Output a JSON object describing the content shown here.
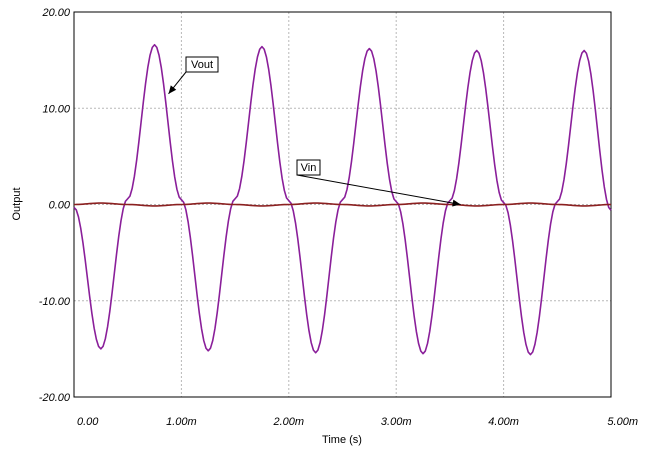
{
  "chart_data": {
    "type": "line",
    "title": "",
    "xlabel": "Time (s)",
    "ylabel": "Output",
    "xlim": [
      0,
      0.005
    ],
    "ylim": [
      -20,
      20
    ],
    "x_tick_labels": [
      "0.00",
      "1.00m",
      "2.00m",
      "3.00m",
      "4.00m",
      "5.00m"
    ],
    "y_tick_labels": [
      "20.00",
      "10.00",
      "0.00",
      "-10.00",
      "-20.00"
    ],
    "grid": true,
    "series": [
      {
        "name": "Vout",
        "color": "#8a1f9a",
        "x": [
          0,
          0.00025,
          0.0005,
          0.00075,
          0.001,
          0.00125,
          0.0015,
          0.00175,
          0.002,
          0.00225,
          0.0025,
          0.00275,
          0.003,
          0.00325,
          0.0035,
          0.00375,
          0.004,
          0.00425,
          0.0045,
          0.00475,
          0.005
        ],
        "values": [
          -0.3,
          -15.0,
          0.6,
          16.6,
          0.5,
          -15.2,
          0.6,
          16.4,
          0.4,
          -15.4,
          0.5,
          16.2,
          0.3,
          -15.5,
          0.4,
          16.0,
          0.2,
          -15.6,
          0.3,
          16.0,
          -0.6
        ]
      },
      {
        "name": "Vin",
        "color": "#8b2020",
        "x": [
          0,
          0.00025,
          0.0005,
          0.00075,
          0.001,
          0.00125,
          0.0015,
          0.00175,
          0.002,
          0.00225,
          0.0025,
          0.00275,
          0.003,
          0.00325,
          0.0035,
          0.00375,
          0.004,
          0.00425,
          0.0045,
          0.00475,
          0.005
        ],
        "values": [
          0,
          0.15,
          0,
          -0.15,
          0,
          0.15,
          0,
          -0.15,
          0,
          0.15,
          0,
          -0.15,
          0,
          0.15,
          0,
          -0.15,
          0,
          0.15,
          0,
          -0.15,
          0
        ]
      }
    ],
    "annotations": [
      {
        "text": "Vout",
        "target_series": "Vout",
        "target_x": 0.00088,
        "target_y": 11.5
      },
      {
        "text": "Vin",
        "target_series": "Vin",
        "target_x": 0.0036,
        "target_y": 0.0
      }
    ]
  }
}
